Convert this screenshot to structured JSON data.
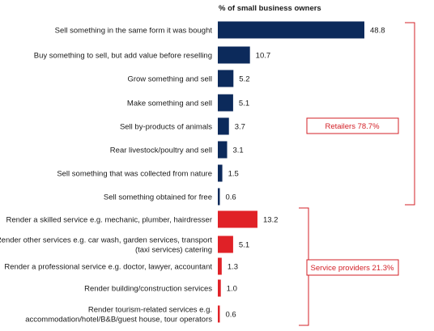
{
  "chart_data": {
    "type": "bar",
    "orientation": "horizontal",
    "axis_title": "% of small business owners",
    "categories": [
      [
        "Sell something in the same form it was bought"
      ],
      [
        "Buy something to sell, but add value before reselling"
      ],
      [
        "Grow something and sell"
      ],
      [
        "Make something and sell"
      ],
      [
        "Sell by-products of animals"
      ],
      [
        "Rear livestock/poultry and sell"
      ],
      [
        "Sell something that was collected from nature"
      ],
      [
        "Sell something obtained for free"
      ],
      [
        "Render a skilled service e.g. mechanic, plumber, hairdresser"
      ],
      [
        "Render other services e.g. car wash, garden services, transport",
        "(taxi services) catering"
      ],
      [
        "Render a professional service e.g. doctor, lawyer, accountant"
      ],
      [
        "Render building/construction services"
      ],
      [
        "Render tourism-related services e.g.",
        "accommodation/hotel/B&B/guest house, tour operators"
      ]
    ],
    "values": [
      48.8,
      10.7,
      5.2,
      5.1,
      3.7,
      3.1,
      1.5,
      0.6,
      13.2,
      5.1,
      1.3,
      1.0,
      0.6
    ],
    "value_labels": [
      "48.8",
      "10.7",
      "5.2",
      "5.1",
      "3.7",
      "3.1",
      "1.5",
      "0.6",
      "13.2",
      "5.1",
      "1.3",
      "1.0",
      "0.6"
    ],
    "groups": [
      {
        "label": "Retailers 78.7%",
        "start": 0,
        "end": 7,
        "color": "#0c2a5b"
      },
      {
        "label": "Service providers 21.3%",
        "start": 8,
        "end": 12,
        "color": "#e02127"
      }
    ],
    "xlim": [
      0,
      50
    ],
    "grid": false,
    "legend": "none"
  }
}
